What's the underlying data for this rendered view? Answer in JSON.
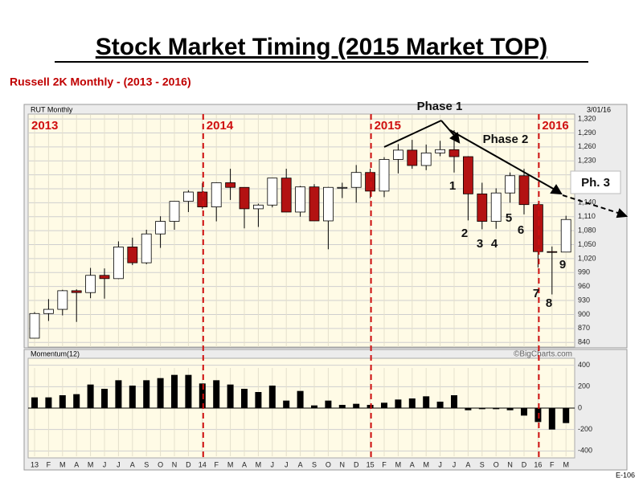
{
  "chart_data": [
    {
      "type": "candlestick",
      "title": "Stock Market Timing (2015 Market TOP)",
      "subtitle": "Russell 2K Monthly - (2013 - 2016)",
      "label": "RUT Monthly",
      "date": "3/01/16",
      "open": [
        849,
        902,
        911,
        951,
        947,
        984,
        977,
        1045,
        1011,
        1073,
        1100,
        1143,
        1163,
        1131,
        1183,
        1173,
        1127,
        1135,
        1193,
        1120,
        1174,
        1101,
        1173,
        1173,
        1205,
        1165,
        1233,
        1253,
        1220,
        1247,
        1254,
        1239,
        1159,
        1100,
        1161,
        1198,
        1136,
        1035,
        1034
      ],
      "high": [
        905,
        933,
        953,
        954,
        1000,
        999,
        1057,
        1065,
        1082,
        1111,
        1143,
        1167,
        1182,
        1184,
        1213,
        1173,
        1138,
        1193,
        1213,
        1176,
        1180,
        1174,
        1183,
        1221,
        1213,
        1238,
        1266,
        1275,
        1265,
        1273,
        1296,
        1240,
        1183,
        1171,
        1205,
        1213,
        1138,
        1046,
        1112
      ],
      "low": [
        849,
        886,
        898,
        884,
        935,
        934,
        976,
        1006,
        1008,
        1043,
        1082,
        1120,
        1127,
        1100,
        1146,
        1085,
        1088,
        1130,
        1120,
        1110,
        1101,
        1040,
        1150,
        1140,
        1150,
        1152,
        1203,
        1213,
        1210,
        1240,
        1205,
        1102,
        1083,
        1084,
        1140,
        1115,
        1001,
        943,
        1034
      ],
      "close": [
        902,
        911,
        951,
        947,
        984,
        977,
        1045,
        1011,
        1073,
        1100,
        1143,
        1163,
        1131,
        1183,
        1173,
        1127,
        1135,
        1193,
        1120,
        1174,
        1101,
        1173,
        1173,
        1205,
        1165,
        1233,
        1253,
        1220,
        1247,
        1254,
        1239,
        1159,
        1100,
        1161,
        1198,
        1136,
        1035,
        1034,
        1104
      ],
      "up_color": "#ffffff",
      "down_color": "#b31212",
      "ylim": [
        830,
        1346
      ],
      "yticks": [
        840,
        870,
        900,
        930,
        960,
        990,
        {
          "value": 1020,
          "label": "1,020"
        },
        {
          "value": 1050,
          "label": "1,050"
        },
        {
          "value": 1080,
          "label": "1,080"
        },
        {
          "value": 1110,
          "label": "1,110"
        },
        {
          "value": 1140,
          "label": "1,140"
        },
        {
          "value": 1170,
          "label": "1,170"
        },
        {
          "value": 1200,
          "label": "1,200"
        },
        {
          "value": 1230,
          "label": "1,230"
        },
        {
          "value": 1260,
          "label": "1,260"
        },
        {
          "value": 1290,
          "label": "1,290"
        },
        {
          "value": 1320,
          "label": "1,320"
        }
      ],
      "grid": true,
      "year_labels": [
        "2013",
        "2014",
        "2015",
        "2016"
      ],
      "annotations": [
        "Phase 1",
        "Phase 2",
        "Ph. 3",
        "1",
        "2",
        "3",
        "4",
        "5",
        "6",
        "7",
        "8",
        "9"
      ]
    },
    {
      "type": "bar",
      "label": "Momentum(12)",
      "source": "©BigCharts.com",
      "categories": [
        "13",
        "F",
        "M",
        "A",
        "M",
        "J",
        "J",
        "A",
        "S",
        "O",
        "N",
        "D",
        "14",
        "F",
        "M",
        "A",
        "M",
        "J",
        "J",
        "A",
        "S",
        "O",
        "N",
        "D",
        "15",
        "F",
        "M",
        "A",
        "M",
        "J",
        "J",
        "A",
        "S",
        "O",
        "N",
        "D",
        "16",
        "F",
        "M"
      ],
      "values": [
        100,
        100,
        120,
        130,
        220,
        180,
        260,
        210,
        260,
        280,
        310,
        310,
        230,
        260,
        220,
        180,
        150,
        210,
        70,
        160,
        25,
        70,
        30,
        40,
        30,
        50,
        80,
        90,
        110,
        60,
        120,
        -20,
        -10,
        -10,
        -20,
        -70,
        -130,
        -200,
        -140
      ],
      "color": "#000000",
      "ylim": [
        -450,
        450
      ],
      "yticks": [
        400,
        200,
        0,
        -200,
        -400
      ],
      "grid": true
    },
    {
      "footer": "E-106"
    }
  ]
}
